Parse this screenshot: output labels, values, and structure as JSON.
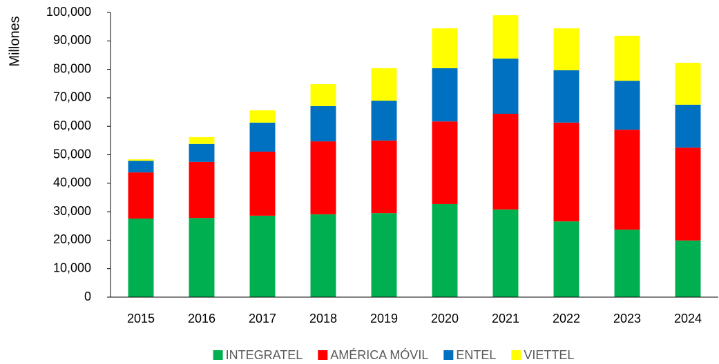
{
  "chart_data": {
    "type": "stacked_bar",
    "y_axis_label": "Millones",
    "categories": [
      "2015",
      "2016",
      "2017",
      "2018",
      "2019",
      "2020",
      "2021",
      "2022",
      "2023",
      "2024"
    ],
    "series": [
      {
        "name": "INTEGRATEL",
        "color": "#00b050",
        "values": [
          27600,
          27800,
          28600,
          29100,
          29500,
          32700,
          30800,
          26600,
          23700,
          19900
        ]
      },
      {
        "name": "AMÉRICA MÓVIL",
        "color": "#ff0000",
        "values": [
          16200,
          19700,
          22500,
          25600,
          25500,
          29000,
          33600,
          34700,
          35100,
          32600
        ]
      },
      {
        "name": "ENTEL",
        "color": "#0070c0",
        "values": [
          4100,
          6300,
          10200,
          12400,
          14000,
          18700,
          19400,
          18400,
          17200,
          15100
        ]
      },
      {
        "name": "VIETTEL",
        "color": "#ffff00",
        "values": [
          500,
          2400,
          4300,
          7700,
          11400,
          14000,
          15200,
          14700,
          15800,
          14700
        ]
      }
    ],
    "ylim": [
      0,
      100000
    ],
    "yticks": [
      0,
      {
        "value": 10000,
        "label": "10,000"
      },
      {
        "value": 20000,
        "label": "20,000"
      },
      {
        "value": 30000,
        "label": "30,000"
      },
      {
        "value": 40000,
        "label": "40,000"
      },
      {
        "value": 50000,
        "label": "50,000"
      },
      {
        "value": 60000,
        "label": "60,000"
      },
      {
        "value": 70000,
        "label": "70,000"
      },
      {
        "value": 80000,
        "label": "80,000"
      },
      {
        "value": 90000,
        "label": "90,000"
      },
      {
        "value": 100000,
        "label": "100,000"
      }
    ],
    "legend": "bottom",
    "grid": false
  }
}
